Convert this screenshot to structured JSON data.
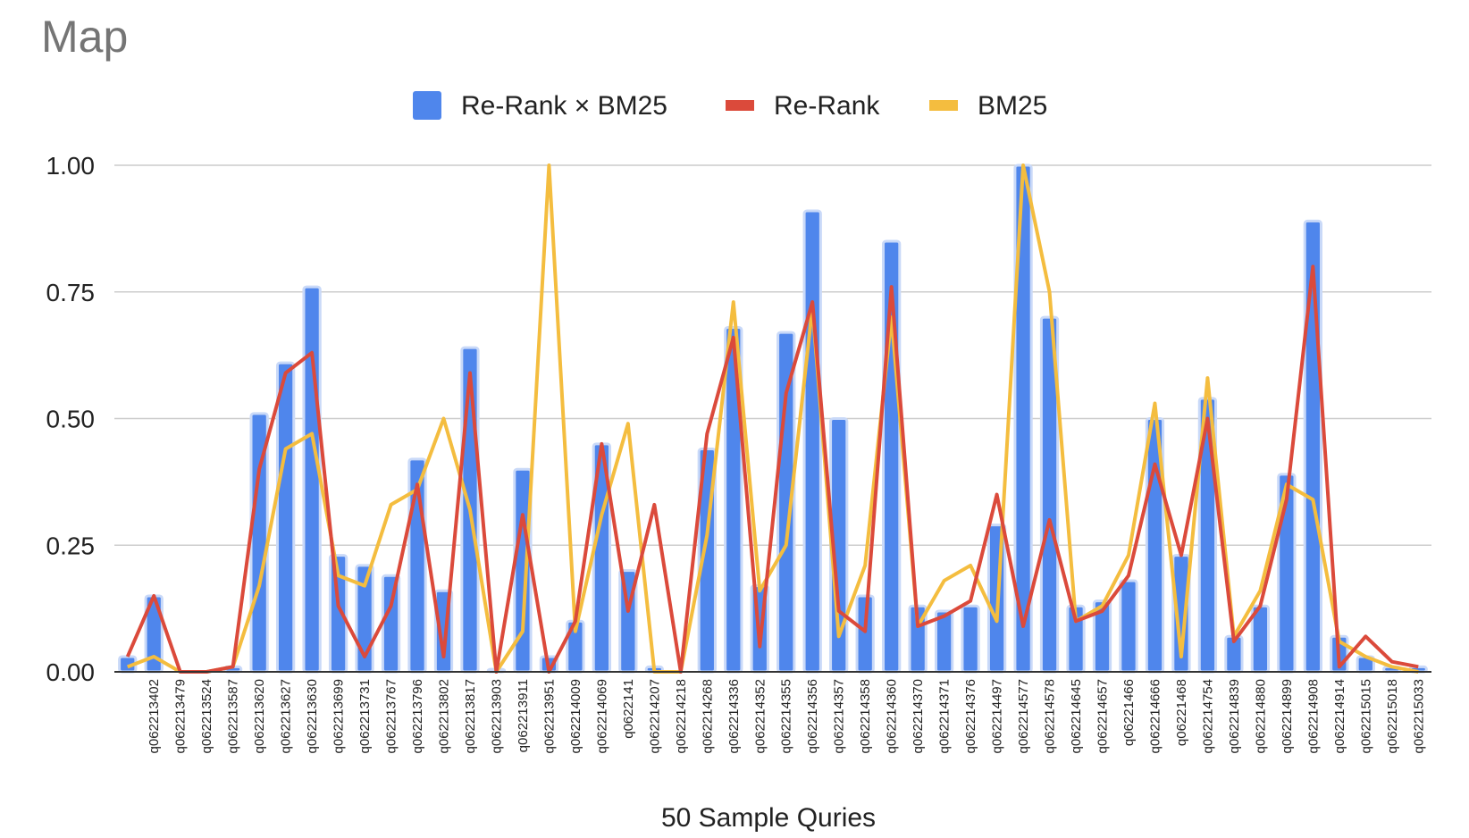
{
  "chart_data": {
    "type": "bar",
    "title": "Map",
    "xlabel": "50 Sample Quries",
    "ylabel": "",
    "ylim": [
      0,
      1
    ],
    "yticks": [
      "0.00",
      "0.25",
      "0.50",
      "0.75",
      "1.00"
    ],
    "grid": true,
    "legend_position": "top-center",
    "categories": [
      "",
      "q062213402",
      "q062213479",
      "q062213524",
      "q062213587",
      "q062213620",
      "q062213627",
      "q062213630",
      "q062213699",
      "q062213731",
      "q062213767",
      "q062213796",
      "q062213802",
      "q062213817",
      "q062213903",
      "q062213911",
      "q062213951",
      "q062214009",
      "q062214069",
      "q0622141",
      "q062214207",
      "q062214218",
      "q062214268",
      "q062214336",
      "q062214352",
      "q062214355",
      "q062214356",
      "q062214357",
      "q062214358",
      "q062214360",
      "q062214370",
      "q062214371",
      "q062214376",
      "q062214497",
      "q062214577",
      "q062214578",
      "q062214645",
      "q062214657",
      "q06221466",
      "q062214666",
      "q06221468",
      "q062214754",
      "q062214839",
      "q062214880",
      "q062214899",
      "q062214908",
      "q062214914",
      "q062215015",
      "q062215018",
      "q062215033"
    ],
    "series": [
      {
        "name": "Re-Rank × BM25",
        "type": "bar",
        "color": "#4f86ec",
        "values": [
          0.03,
          0.15,
          0.0,
          0.0,
          0.01,
          0.51,
          0.61,
          0.76,
          0.23,
          0.21,
          0.19,
          0.42,
          0.16,
          0.64,
          0.005,
          0.4,
          0.03,
          0.1,
          0.45,
          0.2,
          0.01,
          0.0,
          0.44,
          0.68,
          0.17,
          0.67,
          0.91,
          0.5,
          0.15,
          0.85,
          0.13,
          0.12,
          0.13,
          0.29,
          1.0,
          0.7,
          0.13,
          0.14,
          0.18,
          0.5,
          0.23,
          0.54,
          0.07,
          0.13,
          0.39,
          0.89,
          0.07,
          0.03,
          0.01,
          0.01
        ]
      },
      {
        "name": "Re-Rank",
        "type": "line",
        "color": "#db4a3b",
        "values": [
          0.03,
          0.15,
          0.0,
          0.0,
          0.01,
          0.4,
          0.59,
          0.63,
          0.13,
          0.03,
          0.13,
          0.37,
          0.03,
          0.59,
          0.0,
          0.31,
          0.0,
          0.1,
          0.45,
          0.12,
          0.33,
          0.0,
          0.47,
          0.66,
          0.05,
          0.55,
          0.73,
          0.12,
          0.08,
          0.76,
          0.09,
          0.11,
          0.14,
          0.35,
          0.09,
          0.3,
          0.1,
          0.12,
          0.19,
          0.41,
          0.23,
          0.5,
          0.06,
          0.13,
          0.34,
          0.8,
          0.01,
          0.07,
          0.02,
          0.01
        ]
      },
      {
        "name": "BM25",
        "type": "line",
        "color": "#f4bd3f",
        "values": [
          0.01,
          0.03,
          0.0,
          0.0,
          0.01,
          0.17,
          0.44,
          0.47,
          0.19,
          0.17,
          0.33,
          0.36,
          0.5,
          0.32,
          0.0,
          0.08,
          1.0,
          0.08,
          0.31,
          0.49,
          0.0,
          0.0,
          0.27,
          0.73,
          0.16,
          0.25,
          0.72,
          0.07,
          0.21,
          0.7,
          0.09,
          0.18,
          0.21,
          0.1,
          1.0,
          0.75,
          0.1,
          0.13,
          0.23,
          0.53,
          0.03,
          0.58,
          0.07,
          0.16,
          0.37,
          0.34,
          0.06,
          0.03,
          0.01,
          0.0
        ]
      }
    ]
  }
}
